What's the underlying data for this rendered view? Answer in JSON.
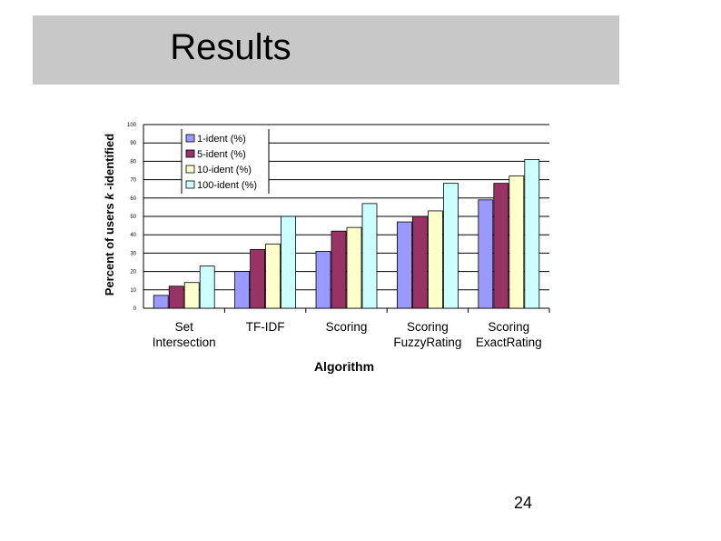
{
  "slide": {
    "title": "Results",
    "page_number": "24"
  },
  "chart_data": {
    "type": "bar",
    "categories": [
      [
        "Set",
        "Intersection"
      ],
      [
        "TF-IDF"
      ],
      [
        "Scoring"
      ],
      [
        "Scoring",
        "FuzzyRating"
      ],
      [
        "Scoring",
        "ExactRating"
      ]
    ],
    "series": [
      {
        "name": "1-ident (%)",
        "color": "#9999ff",
        "values": [
          7,
          20,
          31,
          47,
          59
        ]
      },
      {
        "name": "5-ident (%)",
        "color": "#993366",
        "values": [
          12,
          32,
          42,
          50,
          68
        ]
      },
      {
        "name": "10-ident (%)",
        "color": "#ffffcc",
        "values": [
          14,
          35,
          44,
          53,
          72
        ]
      },
      {
        "name": "100-ident (%)",
        "color": "#ccffff",
        "values": [
          23,
          50,
          57,
          68,
          81
        ]
      }
    ],
    "xlabel": "Algorithm",
    "ylabel_parts": [
      "Percent of users ",
      "k",
      " -identified"
    ],
    "ylim": [
      0,
      100
    ],
    "yticks": [
      "0",
      "10",
      "20",
      "30",
      "40",
      "50",
      "60",
      "70",
      "80",
      "90",
      "100"
    ],
    "grid": true,
    "legend_position": "top-left"
  }
}
